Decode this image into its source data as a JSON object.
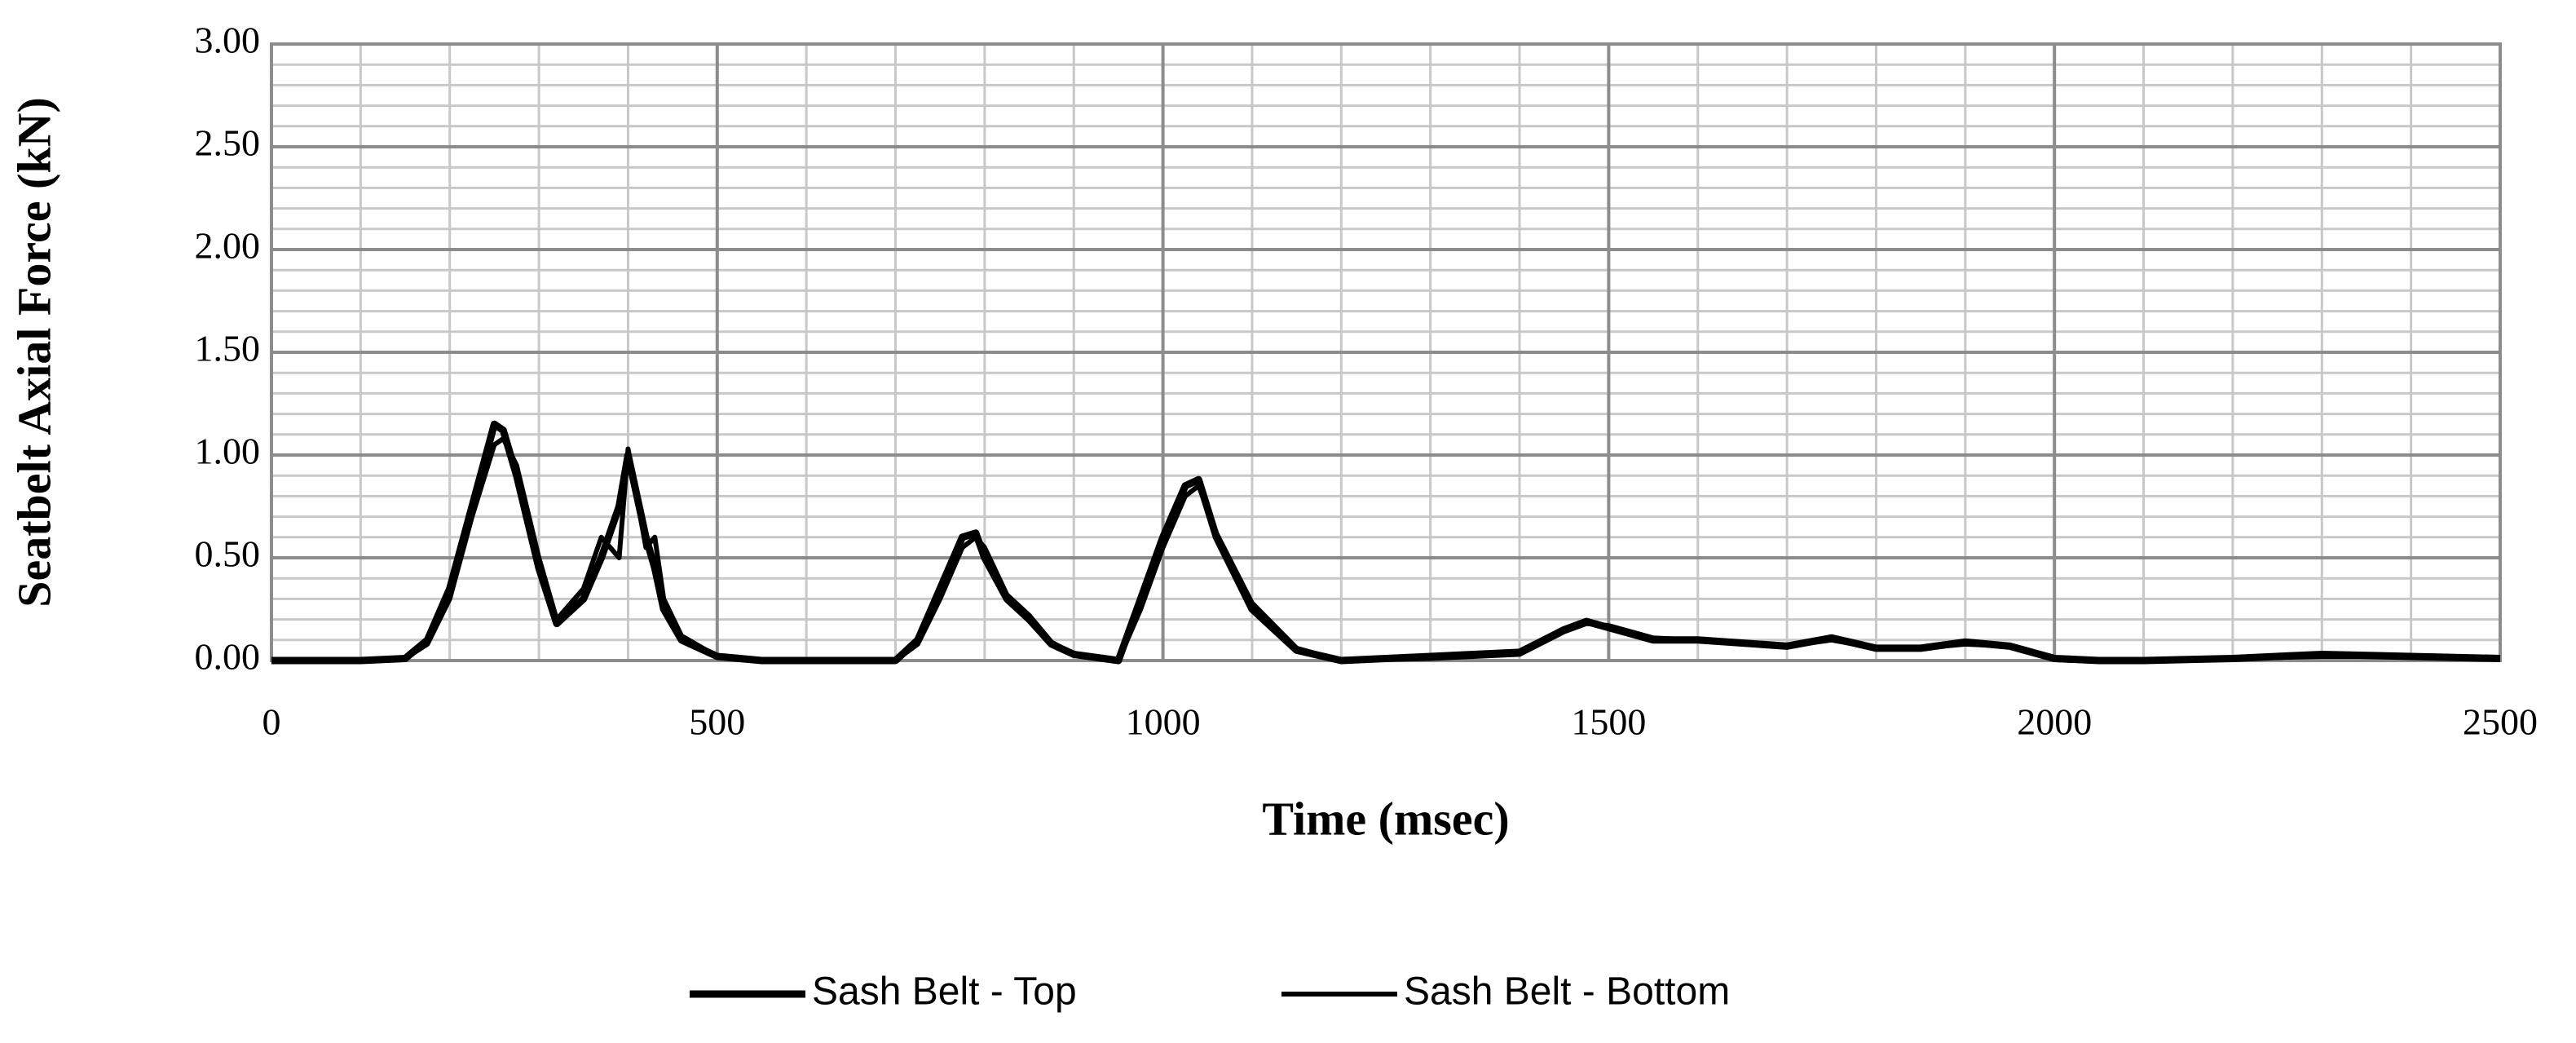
{
  "chart_data": {
    "type": "line",
    "x_label": "Time (msec)",
    "y_label": "Seatbelt Axial Force (kN)",
    "x": [
      0,
      100,
      150,
      175,
      200,
      225,
      250,
      260,
      275,
      300,
      320,
      350,
      370,
      390,
      400,
      420,
      430,
      440,
      460,
      500,
      550,
      700,
      725,
      750,
      775,
      790,
      800,
      825,
      850,
      875,
      900,
      950,
      975,
      1000,
      1025,
      1040,
      1060,
      1100,
      1150,
      1200,
      1300,
      1400,
      1450,
      1475,
      1500,
      1550,
      1600,
      1700,
      1750,
      1800,
      1850,
      1900,
      1950,
      2000,
      2050,
      2100,
      2200,
      2300,
      2400,
      2500
    ],
    "series": [
      {
        "name": "Sash Belt - Top",
        "color": "#000000",
        "values": [
          0,
          0,
          0.01,
          0.1,
          0.35,
          0.75,
          1.15,
          1.12,
          0.9,
          0.45,
          0.18,
          0.3,
          0.5,
          0.75,
          1.0,
          0.6,
          0.45,
          0.25,
          0.1,
          0.02,
          0,
          0,
          0.1,
          0.35,
          0.6,
          0.62,
          0.5,
          0.3,
          0.2,
          0.08,
          0.03,
          0,
          0.3,
          0.6,
          0.85,
          0.88,
          0.6,
          0.25,
          0.05,
          0,
          0.02,
          0.04,
          0.15,
          0.19,
          0.16,
          0.1,
          0.1,
          0.07,
          0.11,
          0.06,
          0.06,
          0.09,
          0.07,
          0.01,
          0,
          0,
          0.01,
          0.03,
          0.02,
          0.01
        ]
      },
      {
        "name": "Sash Belt - Bottom",
        "color": "#000000",
        "values": [
          0,
          0,
          0.01,
          0.08,
          0.3,
          0.7,
          1.05,
          1.08,
          0.95,
          0.5,
          0.2,
          0.35,
          0.6,
          0.5,
          1.03,
          0.55,
          0.6,
          0.3,
          0.12,
          0.02,
          0,
          0,
          0.08,
          0.3,
          0.55,
          0.6,
          0.55,
          0.32,
          0.22,
          0.09,
          0.03,
          0,
          0.25,
          0.55,
          0.8,
          0.85,
          0.62,
          0.28,
          0.06,
          0,
          0.01,
          0.03,
          0.14,
          0.18,
          0.17,
          0.11,
          0.1,
          0.07,
          0.1,
          0.06,
          0.06,
          0.08,
          0.07,
          0.01,
          0,
          0,
          0.01,
          0.02,
          0.02,
          0.01
        ]
      }
    ],
    "xlim": [
      0,
      2500
    ],
    "xticks": [
      0,
      500,
      1000,
      1500,
      2000,
      2500
    ],
    "ylim": [
      0,
      3
    ],
    "yticks": [
      {
        "value": 0,
        "label": "0.00"
      },
      {
        "value": 0.5,
        "label": "0.50"
      },
      {
        "value": 1,
        "label": "1.00"
      },
      {
        "value": 1.5,
        "label": "1.50"
      },
      {
        "value": 2,
        "label": "2.00"
      },
      {
        "value": 2.5,
        "label": "2.50"
      },
      {
        "value": 3,
        "label": "3.00"
      }
    ],
    "grid": true,
    "legend": "bottom"
  }
}
